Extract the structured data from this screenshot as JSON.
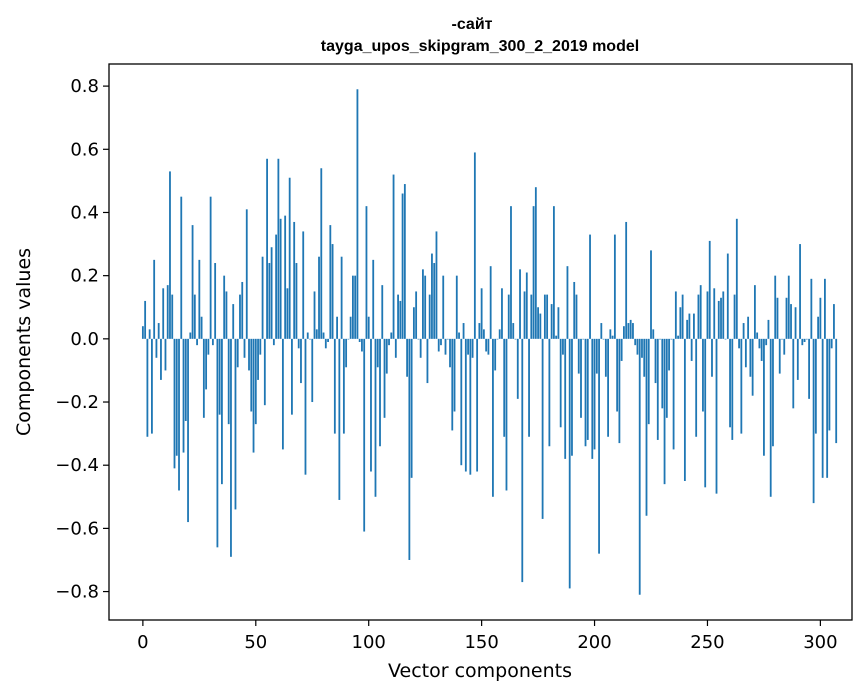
{
  "chart_data": {
    "type": "bar",
    "title_lines": [
      "-сайт",
      "tayga_upos_skipgram_300_2_2019 model"
    ],
    "xlabel": "Vector components",
    "ylabel": "Components values",
    "xlim": [
      -15,
      314
    ],
    "ylim": [
      -0.89,
      0.87
    ],
    "xticks": [
      0,
      50,
      100,
      150,
      200,
      250,
      300
    ],
    "yticks": [
      -0.8,
      -0.6,
      -0.4,
      -0.2,
      0.0,
      0.2,
      0.4,
      0.6,
      0.8
    ],
    "ytick_labels": [
      "−0.8",
      "−0.6",
      "−0.4",
      "−0.2",
      "0.0",
      "0.2",
      "0.4",
      "0.6",
      "0.8"
    ],
    "bar_color": "#1f77b4",
    "values": [
      0.04,
      0.12,
      -0.31,
      0.03,
      -0.3,
      0.25,
      -0.06,
      0.05,
      -0.13,
      0.16,
      -0.1,
      0.17,
      0.53,
      0.14,
      -0.41,
      -0.37,
      -0.48,
      0.45,
      -0.36,
      -0.26,
      -0.58,
      0.02,
      0.36,
      0.14,
      -0.02,
      0.25,
      0.07,
      -0.25,
      -0.16,
      -0.05,
      0.45,
      -0.02,
      0.24,
      -0.66,
      -0.24,
      -0.46,
      0.2,
      0.15,
      -0.27,
      -0.69,
      0.11,
      -0.54,
      -0.09,
      0.14,
      0.18,
      -0.06,
      0.41,
      -0.1,
      -0.23,
      -0.36,
      -0.27,
      -0.13,
      -0.05,
      0.26,
      -0.21,
      0.57,
      0.24,
      0.29,
      -0.02,
      0.33,
      0.57,
      0.38,
      -0.35,
      0.39,
      0.16,
      0.51,
      -0.24,
      0.37,
      0.24,
      -0.03,
      -0.14,
      0.34,
      -0.43,
      0.02,
      0.0,
      -0.2,
      0.15,
      0.03,
      0.26,
      0.54,
      0.02,
      -0.03,
      -0.01,
      0.36,
      0.3,
      -0.3,
      0.07,
      -0.51,
      0.26,
      -0.3,
      -0.09,
      0.0,
      0.07,
      0.2,
      0.2,
      0.79,
      -0.01,
      -0.04,
      -0.61,
      0.42,
      0.07,
      -0.42,
      0.25,
      -0.5,
      -0.09,
      -0.34,
      0.17,
      -0.25,
      -0.11,
      -0.02,
      0.02,
      0.52,
      -0.06,
      0.14,
      0.12,
      0.46,
      0.49,
      -0.12,
      -0.7,
      -0.44,
      0.1,
      0.15,
      0.0,
      -0.06,
      0.22,
      0.2,
      -0.14,
      0.14,
      0.27,
      0.24,
      0.34,
      -0.04,
      -0.02,
      0.2,
      -0.05,
      0.0,
      -0.09,
      -0.29,
      -0.23,
      0.2,
      0.02,
      -0.4,
      0.05,
      -0.42,
      -0.05,
      -0.43,
      -0.06,
      0.59,
      -0.42,
      0.05,
      0.16,
      0.03,
      -0.04,
      -0.05,
      0.23,
      -0.5,
      -0.1,
      0.0,
      0.03,
      0.16,
      -0.31,
      -0.48,
      0.14,
      0.42,
      0.05,
      0.0,
      -0.19,
      0.22,
      -0.77,
      0.15,
      0.21,
      -0.31,
      0.14,
      0.42,
      0.48,
      0.1,
      0.08,
      -0.57,
      0.14,
      0.14,
      -0.34,
      0.11,
      0.42,
      0.01,
      0.1,
      -0.28,
      -0.05,
      -0.38,
      0.23,
      -0.79,
      -0.37,
      0.18,
      0.14,
      -0.11,
      -0.25,
      0.0,
      -0.34,
      -0.32,
      0.33,
      -0.38,
      -0.35,
      -0.11,
      -0.68,
      0.05,
      0.0,
      -0.12,
      -0.31,
      0.03,
      0.01,
      0.33,
      -0.23,
      -0.33,
      -0.07,
      0.04,
      0.37,
      0.05,
      0.06,
      0.05,
      -0.02,
      -0.05,
      -0.81,
      -0.06,
      -0.12,
      -0.56,
      -0.27,
      0.28,
      0.03,
      -0.14,
      -0.32,
      0.0,
      -0.22,
      -0.46,
      -0.25,
      -0.1,
      0.0,
      -0.35,
      0.15,
      0.01,
      0.1,
      0.14,
      -0.45,
      0.06,
      0.08,
      -0.07,
      0.08,
      -0.31,
      0.14,
      0.17,
      -0.23,
      -0.47,
      0.15,
      0.31,
      -0.12,
      0.16,
      -0.49,
      0.12,
      0.13,
      0.15,
      0.0,
      0.27,
      -0.28,
      -0.32,
      0.14,
      0.38,
      -0.03,
      -0.3,
      0.05,
      -0.09,
      0.07,
      -0.12,
      -0.18,
      0.17,
      0.02,
      -0.03,
      -0.07,
      -0.37,
      -0.02,
      0.06,
      -0.5,
      -0.34,
      0.2,
      0.13,
      -0.11,
      0.0,
      -0.05,
      0.13,
      0.2,
      0.11,
      -0.22,
      0.1,
      -0.13,
      0.3,
      -0.02,
      -0.01,
      0.0,
      -0.19,
      0.19,
      -0.52,
      -0.3,
      0.07,
      0.13,
      -0.44,
      0.19,
      -0.44,
      -0.29,
      -0.03,
      0.11,
      -0.33
    ]
  }
}
